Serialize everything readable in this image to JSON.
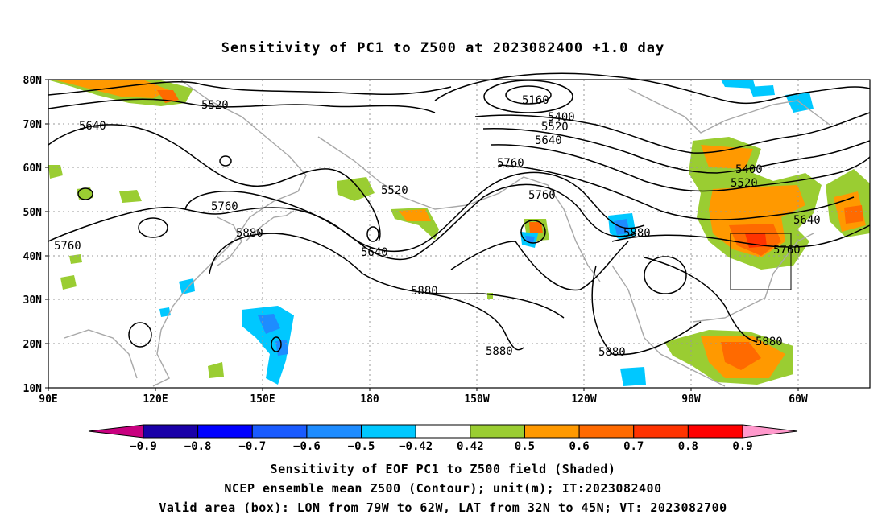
{
  "title": "Sensitivity of PC1 to Z500 at 2023082400 +1.0 day",
  "latitude_labels": [
    "80N",
    "70N",
    "60N",
    "50N",
    "40N",
    "30N",
    "20N",
    "10N"
  ],
  "longitude_labels": [
    "90E",
    "120E",
    "150E",
    "180",
    "150W",
    "120W",
    "90W",
    "60W"
  ],
  "contour_labels": [
    {
      "text": "5520"
    },
    {
      "text": "5640"
    },
    {
      "text": "5160"
    },
    {
      "text": "5400"
    },
    {
      "text": "5520"
    },
    {
      "text": "5640"
    },
    {
      "text": "5760"
    },
    {
      "text": "5760"
    },
    {
      "text": "5520"
    },
    {
      "text": "5760"
    },
    {
      "text": "5880"
    },
    {
      "text": "5760"
    },
    {
      "text": "5640"
    },
    {
      "text": "5880"
    },
    {
      "text": "5880"
    },
    {
      "text": "5400"
    },
    {
      "text": "5520"
    },
    {
      "text": "5640"
    },
    {
      "text": "5760"
    },
    {
      "text": "5880"
    },
    {
      "text": "5880"
    },
    {
      "text": "5880"
    }
  ],
  "colorbar": {
    "tick_labels": [
      "-0.9",
      "-0.8",
      "-0.7",
      "-0.6",
      "-0.5",
      "-0.42",
      "0.42",
      "0.5",
      "0.6",
      "0.7",
      "0.8",
      "0.9"
    ],
    "colors": [
      "#c8007f",
      "#1a00a8",
      "#0000ff",
      "#1a5bff",
      "#1e8cff",
      "#00c8ff",
      "#ffffff",
      "#9acd32",
      "#ff9900",
      "#ff6a00",
      "#ff3300",
      "#ff0000",
      "#ff99cc"
    ]
  },
  "footer": {
    "line1": "Sensitivity of EOF PC1 to Z500 field (Shaded)",
    "line2": "NCEP ensemble mean Z500 (Contour); unit(m); IT:2023082400",
    "line3": "Valid area (box): LON from 79W to 62W, LAT from 32N to 45N; VT: 2023082700"
  },
  "valid_area": {
    "lon_min_w": 79,
    "lon_max_w": 62,
    "lat_min_n": 32,
    "lat_max_n": 45
  }
}
